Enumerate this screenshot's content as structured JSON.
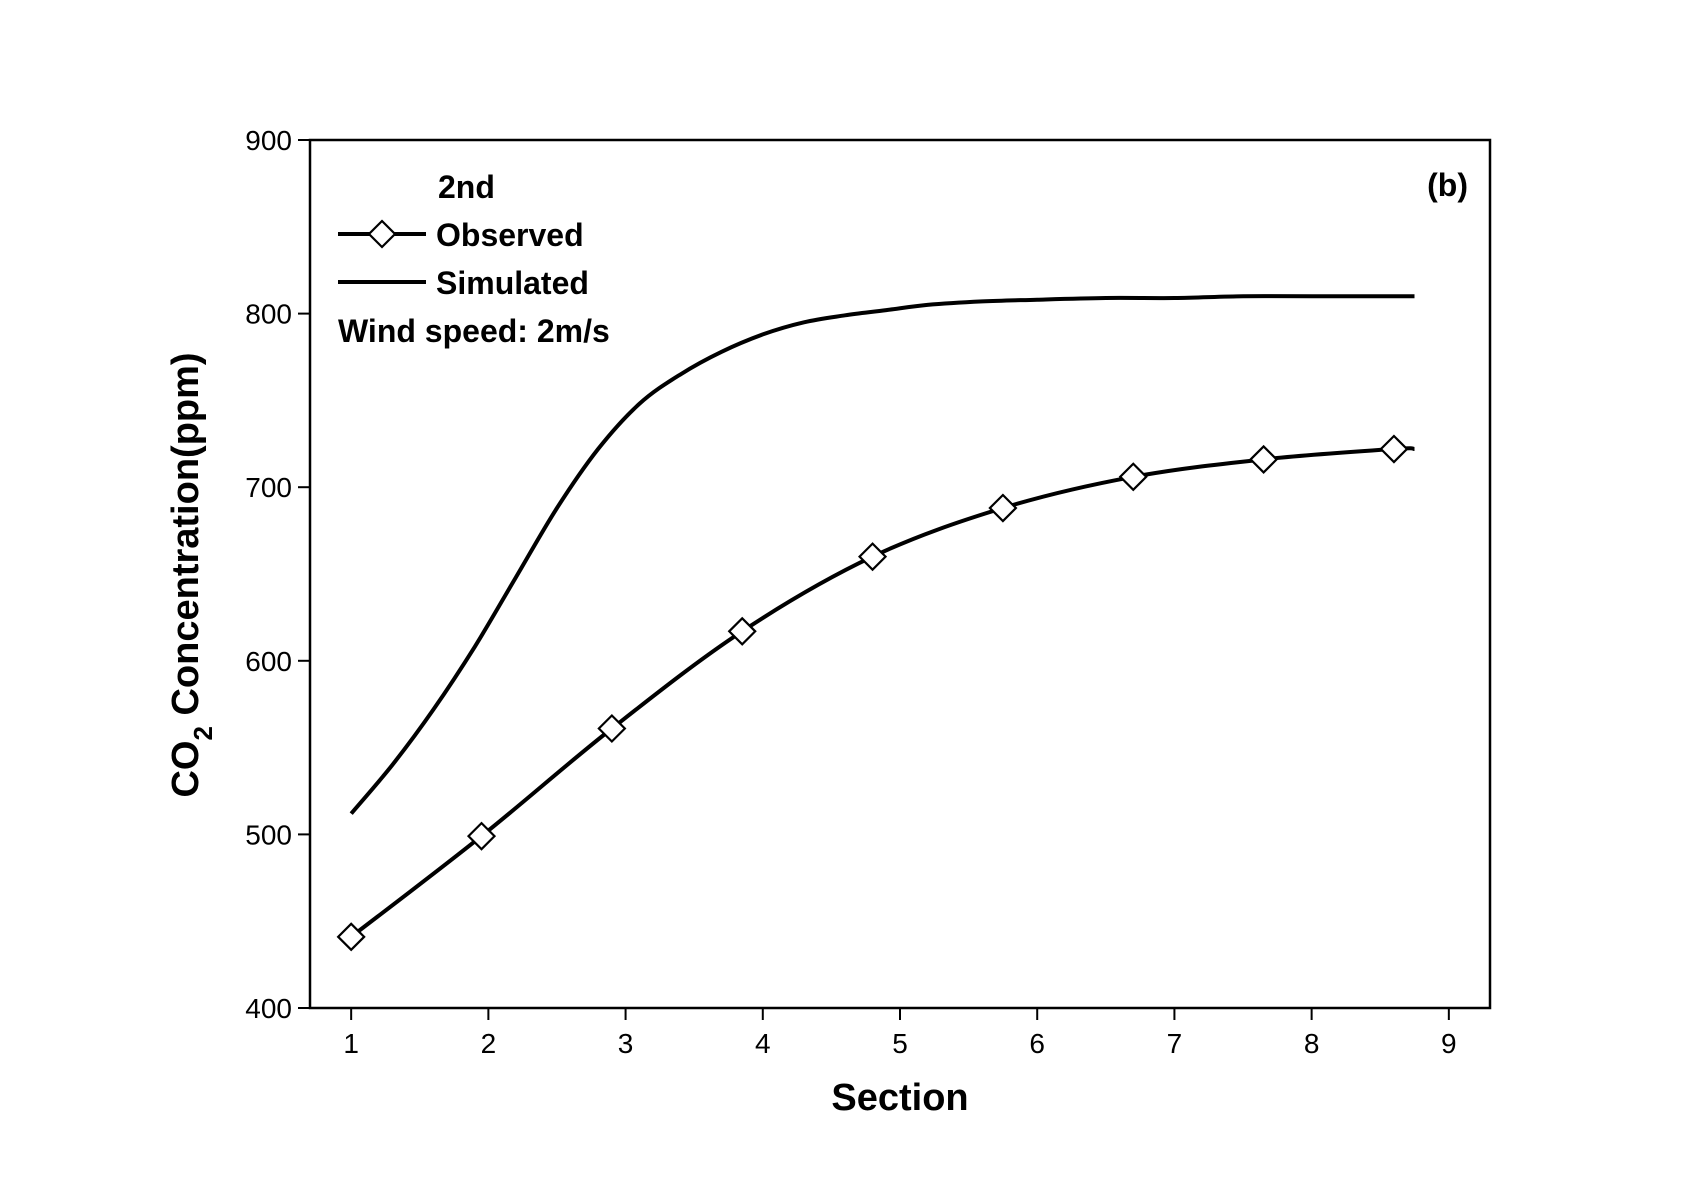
{
  "chart_data": {
    "type": "line",
    "panel_label": "(b)",
    "xlabel": "Section",
    "ylabel": {
      "prefix": "CO",
      "subscript": "2",
      "suffix": " Concentration(ppm)"
    },
    "xlim": [
      0.7,
      9.3
    ],
    "ylim": [
      400,
      900
    ],
    "xticks": [
      1,
      2,
      3,
      4,
      5,
      6,
      7,
      8,
      9
    ],
    "yticks": [
      400,
      500,
      600,
      700,
      800,
      900
    ],
    "grid": false,
    "legend": {
      "placement": "top-left",
      "header": "2nd",
      "note": "Wind speed: 2m/s"
    },
    "series": [
      {
        "name": "Observed",
        "marker": "diamond",
        "color": "#000000",
        "x": [
          1.0,
          1.95,
          2.9,
          3.85,
          4.8,
          5.75,
          6.7,
          7.65,
          8.6
        ],
        "y": [
          441,
          499,
          561,
          617,
          660,
          688,
          706,
          716,
          722
        ],
        "line_end": {
          "x": 8.75,
          "y": 722
        }
      },
      {
        "name": "Simulated",
        "marker": "none",
        "color": "#000000",
        "x": [
          1.0,
          1.3,
          1.6,
          1.9,
          2.2,
          2.5,
          2.8,
          3.1,
          3.4,
          3.7,
          4.0,
          4.3,
          4.6,
          4.9,
          5.2,
          5.6,
          6.0,
          6.5,
          7.0,
          7.5,
          8.0,
          8.75
        ],
        "y": [
          512,
          540,
          572,
          608,
          648,
          688,
          722,
          748,
          765,
          778,
          788,
          795,
          799,
          802,
          805,
          807,
          808,
          809,
          809,
          810,
          810,
          810
        ]
      }
    ]
  }
}
